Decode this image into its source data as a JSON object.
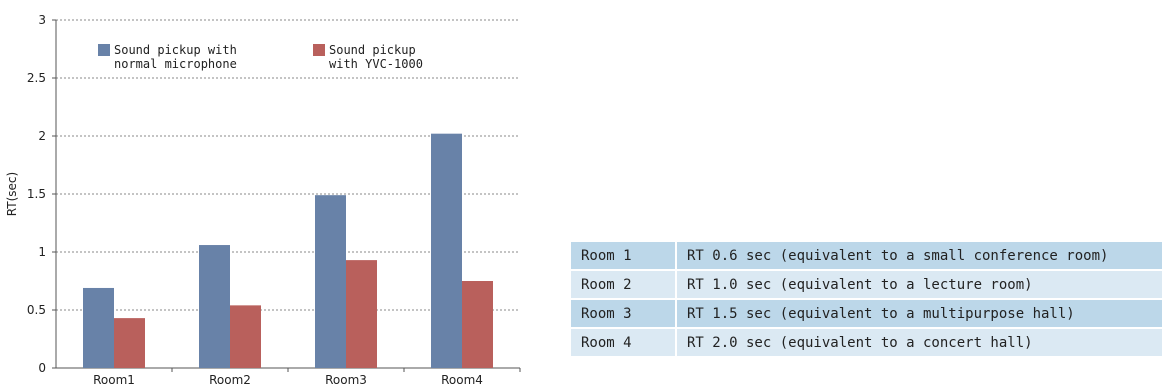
{
  "chart_data": {
    "type": "bar",
    "categories": [
      "Room1",
      "Room2",
      "Room3",
      "Room4"
    ],
    "series": [
      {
        "name": "Sound pickup with normal microphone",
        "name_lines": [
          "Sound pickup with",
          "normal microphone"
        ],
        "values": [
          0.69,
          1.06,
          1.49,
          2.02
        ]
      },
      {
        "name": "Sound pickup with YVC-1000",
        "name_lines": [
          "Sound pickup",
          "with YVC-1000"
        ],
        "values": [
          0.43,
          0.54,
          0.93,
          0.75
        ]
      }
    ],
    "ylabel": "RT(sec)",
    "ylim": [
      0,
      3
    ],
    "yticks": [
      "0",
      "0.5",
      "1",
      "1.5",
      "2",
      "2.5",
      "3"
    ],
    "grid": true,
    "legend": "top-left"
  },
  "colors": {
    "series": [
      "#6882a8",
      "#b9605c"
    ],
    "grid": "#888888",
    "axis": "#555555"
  },
  "table": {
    "rows": [
      {
        "room": "Room 1",
        "desc": "RT 0.6 sec (equivalent to a small conference room)"
      },
      {
        "room": "Room 2",
        "desc": "RT 1.0 sec (equivalent to a lecture room)"
      },
      {
        "room": "Room 3",
        "desc": "RT 1.5 sec (equivalent to a multipurpose hall)"
      },
      {
        "room": "Room 4",
        "desc": "RT 2.0 sec (equivalent to a concert hall)"
      }
    ]
  }
}
